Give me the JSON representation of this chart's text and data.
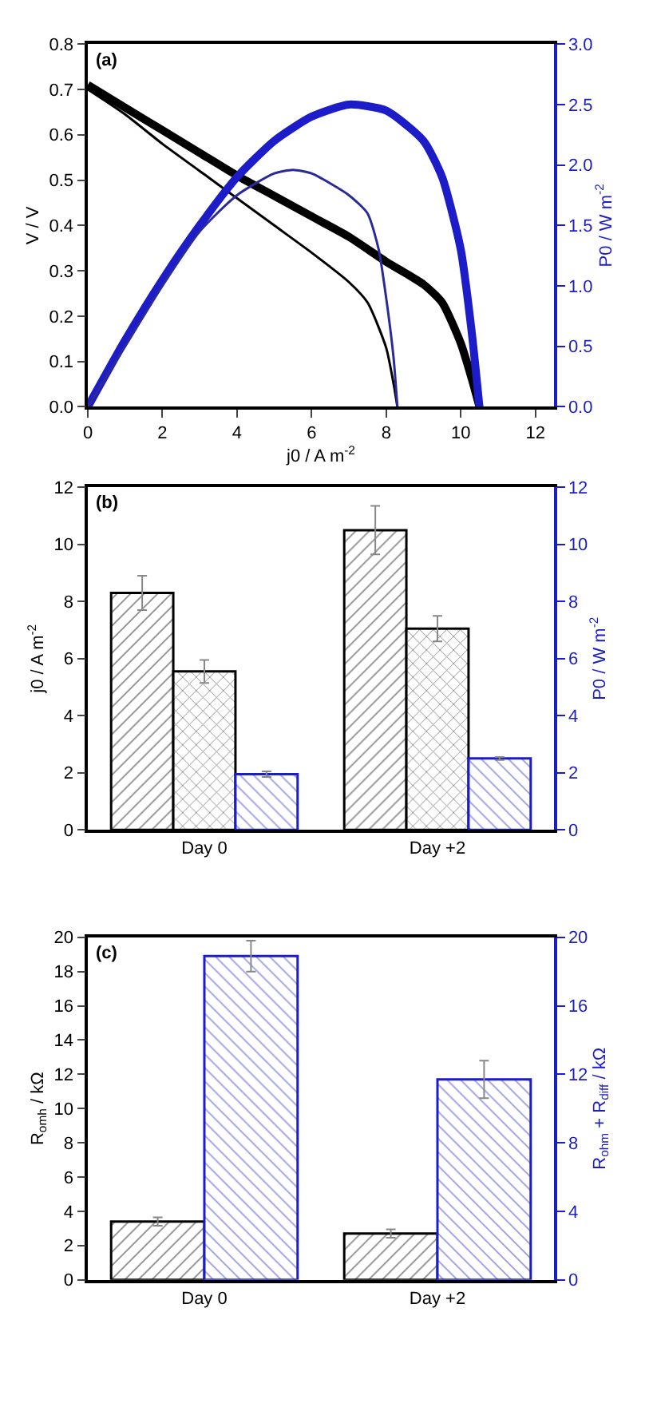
{
  "chart_data": [
    {
      "type": "line",
      "annotations": [
        "(a)"
      ],
      "xlabel": "j0 / A m$^{-2}$",
      "ylabel": "V / V",
      "y2label": "P0 / W m$^{-2}$",
      "xlim": [
        0,
        12.5
      ],
      "xticks": [
        0,
        2,
        4,
        6,
        8,
        10,
        12
      ],
      "ylim": [
        0,
        0.8
      ],
      "yticks": [
        {
          "value": 0,
          "label": "0.0"
        },
        0.1,
        0.2,
        0.3,
        0.4,
        0.5,
        0.6,
        0.7,
        0.8
      ],
      "y2lim": [
        0,
        3
      ],
      "y2ticks": [
        {
          "value": 0,
          "label": "0.0"
        },
        0.5,
        {
          "value": 1,
          "label": "1.0"
        },
        1.5,
        {
          "value": 2,
          "label": "2.0"
        },
        2.5,
        {
          "value": 3,
          "label": "3.0"
        }
      ],
      "series": [
        {
          "color": "#000000",
          "x": [
            0,
            1,
            2,
            3,
            4,
            5,
            6,
            7,
            8,
            9,
            9.5,
            10,
            10.3,
            10.5
          ],
          "values": [
            0.71,
            0.66,
            0.61,
            0.56,
            0.51,
            0.465,
            0.42,
            0.375,
            0.32,
            0.27,
            0.23,
            0.14,
            0.06,
            0
          ]
        },
        {
          "color": "#000000",
          "x": [
            0,
            1,
            2,
            3,
            4,
            5,
            6,
            7,
            7.5,
            8,
            8.2,
            8.3
          ],
          "values": [
            0.7,
            0.645,
            0.58,
            0.52,
            0.46,
            0.4,
            0.34,
            0.275,
            0.23,
            0.13,
            0.05,
            0
          ]
        },
        {
          "color": "#1c1cc8",
          "axis": "y2",
          "x": [
            0,
            1,
            2,
            3,
            4,
            5,
            6,
            7,
            8,
            9,
            9.5,
            10,
            10.3,
            10.5
          ],
          "values": [
            0,
            0.55,
            1.05,
            1.5,
            1.9,
            2.2,
            2.4,
            2.5,
            2.45,
            2.2,
            1.9,
            1.3,
            0.6,
            0
          ]
        },
        {
          "color": "#2a2a9a",
          "axis": "y2",
          "x": [
            0,
            1,
            2,
            3,
            4,
            5,
            5.5,
            6,
            7,
            7.5,
            7.8,
            8,
            8.2,
            8.3
          ],
          "values": [
            0,
            0.5,
            1.0,
            1.45,
            1.75,
            1.93,
            1.96,
            1.93,
            1.75,
            1.6,
            1.3,
            0.9,
            0.4,
            0
          ]
        }
      ]
    },
    {
      "type": "bar",
      "annotations": [
        "(b)"
      ],
      "categories": [
        "Day 0",
        "Day +2"
      ],
      "ylabel": "j0 / A m$^{-2}$",
      "y2label": "P0 / W m$^{-2}$",
      "ylim": [
        0,
        12
      ],
      "yticks": [
        0,
        2,
        4,
        6,
        8,
        10,
        12
      ],
      "y2lim": [
        0,
        12
      ],
      "y2ticks": [
        0,
        2,
        4,
        6,
        8,
        10,
        12
      ],
      "series": [
        {
          "color": "#000000",
          "values": [
            8.3,
            10.5
          ],
          "errors": [
            0.6,
            0.85
          ]
        },
        {
          "color": "#000000",
          "values": [
            5.55,
            7.05
          ],
          "errors": [
            0.4,
            0.45
          ]
        },
        {
          "color": "#1c1cc8",
          "axis": "y2",
          "values": [
            1.95,
            2.5
          ],
          "errors": [
            0.1,
            0.05
          ]
        }
      ]
    },
    {
      "type": "bar",
      "annotations": [
        "(c)"
      ],
      "categories": [
        "Day 0",
        "Day +2"
      ],
      "ylabel": "R$_{omh}$ / kΩ",
      "y2label": "R$_{ohm}$ + R$_{diff}$ / kΩ",
      "ylim": [
        0,
        20
      ],
      "yticks": [
        0,
        2,
        4,
        6,
        8,
        10,
        12,
        14,
        16,
        18,
        20
      ],
      "y2lim": [
        0,
        20
      ],
      "y2ticks": [
        0,
        4,
        8,
        12,
        16,
        20
      ],
      "series": [
        {
          "color": "#000000",
          "values": [
            3.4,
            2.7
          ],
          "errors": [
            0.25,
            0.25
          ]
        },
        {
          "color": "#1c1cc8",
          "axis": "y2",
          "values": [
            18.9,
            11.7
          ],
          "errors": [
            0.9,
            1.1
          ]
        }
      ]
    }
  ]
}
